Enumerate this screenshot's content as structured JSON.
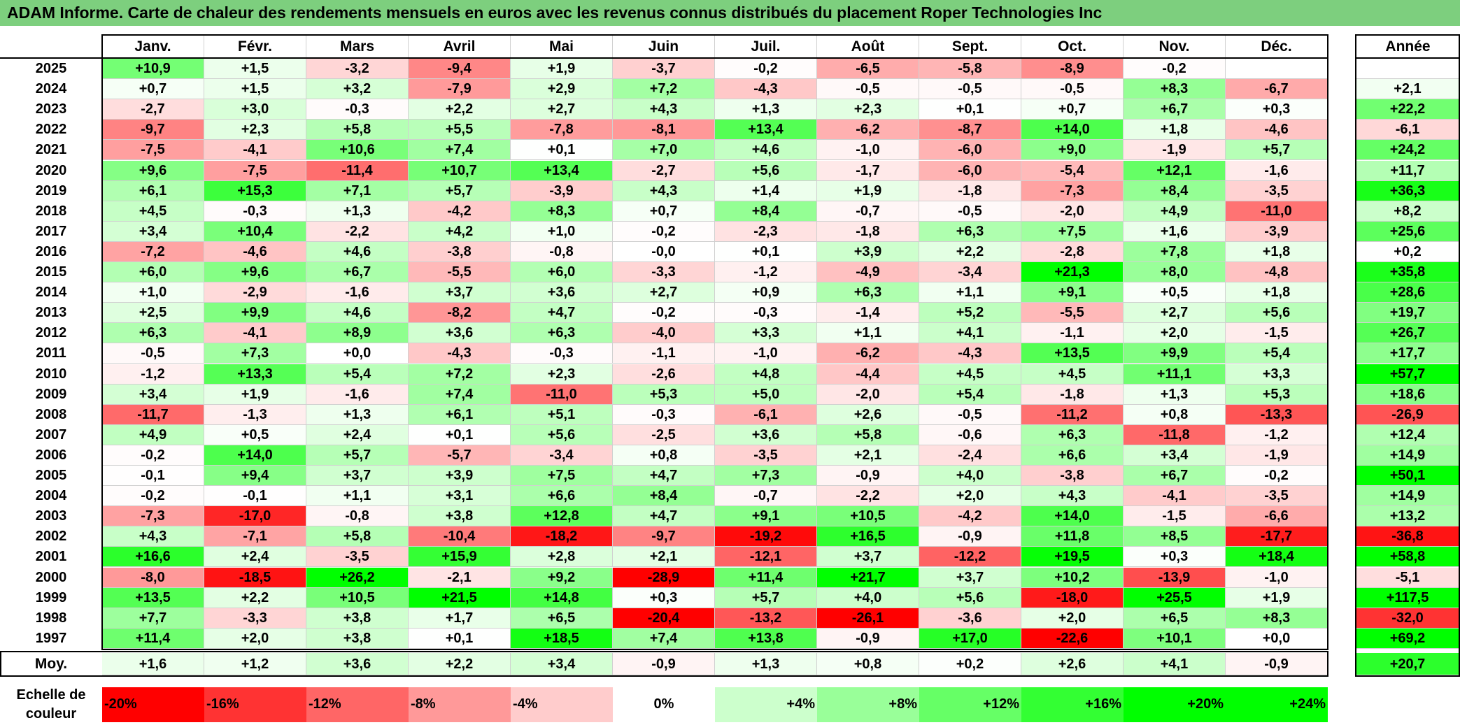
{
  "title": "ADAM Informe. Carte de chaleur des rendements mensuels en euros avec les revenus connus distribués du placement Roper Technologies Inc",
  "chart_data": {
    "type": "heatmap",
    "title": "ADAM Informe. Carte de chaleur des rendements mensuels en euros avec les revenus connus distribués du placement Roper Technologies Inc",
    "months": [
      "Janv.",
      "Févr.",
      "Mars",
      "Avril",
      "Mai",
      "Juin",
      "Juil.",
      "Août",
      "Sept.",
      "Oct.",
      "Nov.",
      "Déc."
    ],
    "year_header": "Année",
    "rows": [
      {
        "year": "2025",
        "values": [
          "+10,9",
          "+1,5",
          "-3,2",
          "-9,4",
          "+1,9",
          "-3,7",
          "-0,2",
          "-6,5",
          "-5,8",
          "-8,9",
          "-0,2",
          ""
        ],
        "annual": ""
      },
      {
        "year": "2024",
        "values": [
          "+0,7",
          "+1,5",
          "+3,2",
          "-7,9",
          "+2,9",
          "+7,2",
          "-4,3",
          "-0,5",
          "-0,5",
          "-0,5",
          "+8,3",
          "-6,7"
        ],
        "annual": "+2,1"
      },
      {
        "year": "2023",
        "values": [
          "-2,7",
          "+3,0",
          "-0,3",
          "+2,2",
          "+2,7",
          "+4,3",
          "+1,3",
          "+2,3",
          "+0,1",
          "+0,7",
          "+6,7",
          "+0,3"
        ],
        "annual": "+22,2"
      },
      {
        "year": "2022",
        "values": [
          "-9,7",
          "+2,3",
          "+5,8",
          "+5,5",
          "-7,8",
          "-8,1",
          "+13,4",
          "-6,2",
          "-8,7",
          "+14,0",
          "+1,8",
          "-4,6"
        ],
        "annual": "-6,1"
      },
      {
        "year": "2021",
        "values": [
          "-7,5",
          "-4,1",
          "+10,6",
          "+7,4",
          "+0,1",
          "+7,0",
          "+4,6",
          "-1,0",
          "-6,0",
          "+9,0",
          "-1,9",
          "+5,7"
        ],
        "annual": "+24,2"
      },
      {
        "year": "2020",
        "values": [
          "+9,6",
          "-7,5",
          "-11,4",
          "+10,7",
          "+13,4",
          "-2,7",
          "+5,6",
          "-1,7",
          "-6,0",
          "-5,4",
          "+12,1",
          "-1,6"
        ],
        "annual": "+11,7"
      },
      {
        "year": "2019",
        "values": [
          "+6,1",
          "+15,3",
          "+7,1",
          "+5,7",
          "-3,9",
          "+4,3",
          "+1,4",
          "+1,9",
          "-1,8",
          "-7,3",
          "+8,4",
          "-3,5"
        ],
        "annual": "+36,3"
      },
      {
        "year": "2018",
        "values": [
          "+4,5",
          "-0,3",
          "+1,3",
          "-4,2",
          "+8,3",
          "+0,7",
          "+8,4",
          "-0,7",
          "-0,5",
          "-2,0",
          "+4,9",
          "-11,0"
        ],
        "annual": "+8,2"
      },
      {
        "year": "2017",
        "values": [
          "+3,4",
          "+10,4",
          "-2,2",
          "+4,2",
          "+1,0",
          "-0,2",
          "-2,3",
          "-1,8",
          "+6,3",
          "+7,5",
          "+1,6",
          "-3,9"
        ],
        "annual": "+25,6"
      },
      {
        "year": "2016",
        "values": [
          "-7,2",
          "-4,6",
          "+4,6",
          "-3,8",
          "-0,8",
          "-0,0",
          "+0,1",
          "+3,9",
          "+2,2",
          "-2,8",
          "+7,8",
          "+1,8"
        ],
        "annual": "+0,2"
      },
      {
        "year": "2015",
        "values": [
          "+6,0",
          "+9,6",
          "+6,7",
          "-5,5",
          "+6,0",
          "-3,3",
          "-1,2",
          "-4,9",
          "-3,4",
          "+21,3",
          "+8,0",
          "-4,8"
        ],
        "annual": "+35,8"
      },
      {
        "year": "2014",
        "values": [
          "+1,0",
          "-2,9",
          "-1,6",
          "+3,7",
          "+3,6",
          "+2,7",
          "+0,9",
          "+6,3",
          "+1,1",
          "+9,1",
          "+0,5",
          "+1,8"
        ],
        "annual": "+28,6"
      },
      {
        "year": "2013",
        "values": [
          "+2,5",
          "+9,9",
          "+4,6",
          "-8,2",
          "+4,7",
          "-0,2",
          "-0,3",
          "-1,4",
          "+5,2",
          "-5,5",
          "+2,7",
          "+5,6"
        ],
        "annual": "+19,7"
      },
      {
        "year": "2012",
        "values": [
          "+6,3",
          "-4,1",
          "+8,9",
          "+3,6",
          "+6,3",
          "-4,0",
          "+3,3",
          "+1,1",
          "+4,1",
          "-1,1",
          "+2,0",
          "-1,5"
        ],
        "annual": "+26,7"
      },
      {
        "year": "2011",
        "values": [
          "-0,5",
          "+7,3",
          "+0,0",
          "-4,3",
          "-0,3",
          "-1,1",
          "-1,0",
          "-6,2",
          "-4,3",
          "+13,5",
          "+9,9",
          "+5,4"
        ],
        "annual": "+17,7"
      },
      {
        "year": "2010",
        "values": [
          "-1,2",
          "+13,3",
          "+5,4",
          "+7,2",
          "+2,3",
          "-2,6",
          "+4,8",
          "-4,4",
          "+4,5",
          "+4,5",
          "+11,1",
          "+3,3"
        ],
        "annual": "+57,7"
      },
      {
        "year": "2009",
        "values": [
          "+3,4",
          "+1,9",
          "-1,6",
          "+7,4",
          "-11,0",
          "+5,3",
          "+5,0",
          "-2,0",
          "+5,4",
          "-1,8",
          "+1,3",
          "+5,3"
        ],
        "annual": "+18,6"
      },
      {
        "year": "2008",
        "values": [
          "-11,7",
          "-1,3",
          "+1,3",
          "+6,1",
          "+5,1",
          "-0,3",
          "-6,1",
          "+2,6",
          "-0,5",
          "-11,2",
          "+0,8",
          "-13,3"
        ],
        "annual": "-26,9"
      },
      {
        "year": "2007",
        "values": [
          "+4,9",
          "+0,5",
          "+2,4",
          "+0,1",
          "+5,6",
          "-2,5",
          "+3,6",
          "+5,8",
          "-0,6",
          "+6,3",
          "-11,8",
          "-1,2"
        ],
        "annual": "+12,4"
      },
      {
        "year": "2006",
        "values": [
          "-0,2",
          "+14,0",
          "+5,7",
          "-5,7",
          "-3,4",
          "+0,8",
          "-3,5",
          "+2,1",
          "-2,4",
          "+6,6",
          "+3,4",
          "-1,9"
        ],
        "annual": "+14,9"
      },
      {
        "year": "2005",
        "values": [
          "-0,1",
          "+9,4",
          "+3,7",
          "+3,9",
          "+7,5",
          "+4,7",
          "+7,3",
          "-0,9",
          "+4,0",
          "-3,8",
          "+6,7",
          "-0,2"
        ],
        "annual": "+50,1"
      },
      {
        "year": "2004",
        "values": [
          "-0,2",
          "-0,1",
          "+1,1",
          "+3,1",
          "+6,6",
          "+8,4",
          "-0,7",
          "-2,2",
          "+2,0",
          "+4,3",
          "-4,1",
          "-3,5"
        ],
        "annual": "+14,9"
      },
      {
        "year": "2003",
        "values": [
          "-7,3",
          "-17,0",
          "-0,8",
          "+3,8",
          "+12,8",
          "+4,7",
          "+9,1",
          "+10,5",
          "-4,2",
          "+14,0",
          "-1,5",
          "-6,6"
        ],
        "annual": "+13,2"
      },
      {
        "year": "2002",
        "values": [
          "+4,3",
          "-7,1",
          "+5,8",
          "-10,4",
          "-18,2",
          "-9,7",
          "-19,2",
          "+16,5",
          "-0,9",
          "+11,8",
          "+8,5",
          "-17,7"
        ],
        "annual": "-36,8"
      },
      {
        "year": "2001",
        "values": [
          "+16,6",
          "+2,4",
          "-3,5",
          "+15,9",
          "+2,8",
          "+2,1",
          "-12,1",
          "+3,7",
          "-12,2",
          "+19,5",
          "+0,3",
          "+18,4"
        ],
        "annual": "+58,8"
      },
      {
        "year": "2000",
        "values": [
          "-8,0",
          "-18,5",
          "+26,2",
          "-2,1",
          "+9,2",
          "-28,9",
          "+11,4",
          "+21,7",
          "+3,7",
          "+10,2",
          "-13,9",
          "-1,0"
        ],
        "annual": "-5,1"
      },
      {
        "year": "1999",
        "values": [
          "+13,5",
          "+2,2",
          "+10,5",
          "+21,5",
          "+14,8",
          "+0,3",
          "+5,7",
          "+4,0",
          "+5,6",
          "-18,0",
          "+25,5",
          "+1,9"
        ],
        "annual": "+117,5"
      },
      {
        "year": "1998",
        "values": [
          "+7,7",
          "-3,3",
          "+3,8",
          "+1,7",
          "+6,5",
          "-20,4",
          "-13,2",
          "-26,1",
          "-3,6",
          "+2,0",
          "+6,5",
          "+8,3"
        ],
        "annual": "-32,0"
      },
      {
        "year": "1997",
        "values": [
          "+11,4",
          "+2,0",
          "+3,8",
          "+0,1",
          "+18,5",
          "+7,4",
          "+13,8",
          "-0,9",
          "+17,0",
          "-22,6",
          "+10,1",
          "+0,0"
        ],
        "annual": "+69,2"
      }
    ],
    "average": {
      "label": "Moy.",
      "values": [
        "+1,6",
        "+1,2",
        "+3,6",
        "+2,2",
        "+3,4",
        "-0,9",
        "+1,3",
        "+0,8",
        "+0,2",
        "+2,6",
        "+4,1",
        "-0,9"
      ],
      "annual": "+20,7"
    },
    "scale": {
      "label_line1": "Echelle de",
      "label_line2": "couleur",
      "steps": [
        {
          "text": "-20%",
          "value": -20
        },
        {
          "text": "-16%",
          "value": -16
        },
        {
          "text": "-12%",
          "value": -12
        },
        {
          "text": "-8%",
          "value": -8
        },
        {
          "text": "-4%",
          "value": -4
        },
        {
          "text": "0%",
          "value": 0
        },
        {
          "text": "+4%",
          "value": 4
        },
        {
          "text": "+8%",
          "value": 8
        },
        {
          "text": "+12%",
          "value": 12
        },
        {
          "text": "+16%",
          "value": 16
        },
        {
          "text": "+20%",
          "value": 20
        },
        {
          "text": "+24%",
          "value": 24
        }
      ]
    },
    "colors": {
      "negative": "#ff0000",
      "neutral": "#ffffff",
      "positive": "#00ff00",
      "title_bg": "#7dcf7e"
    }
  }
}
